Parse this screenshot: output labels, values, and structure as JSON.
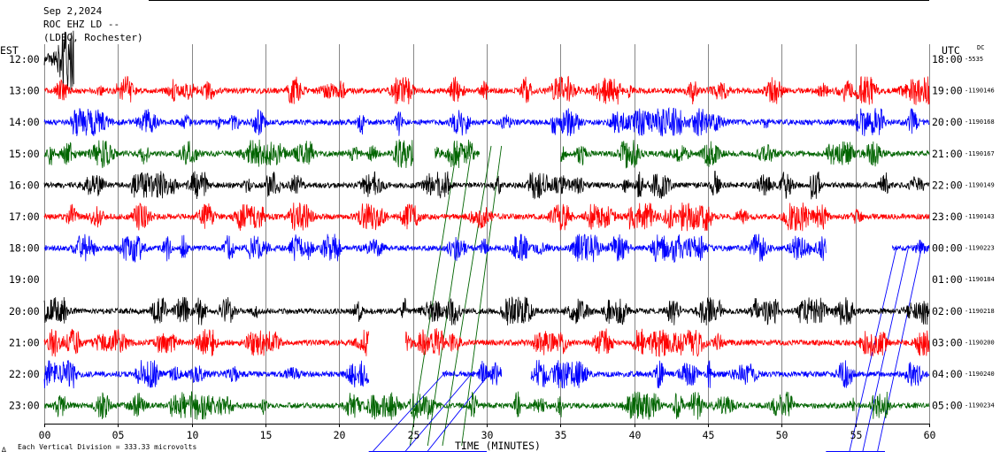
{
  "header": {
    "date": "Sep 2,2024",
    "station": "ROC EHZ LD --",
    "network": "(LDEO, Rochester)"
  },
  "left_axis_title": "EST",
  "right_axis_title": "UTC",
  "dc_label": "DC",
  "x_axis_title": "TIME (MINUTES)",
  "footer": {
    "mark": "∆",
    "text": "Each Vertical Division = 333.33 microvolts"
  },
  "colors": {
    "black": "#000000",
    "red": "#ff0000",
    "blue": "#0000ff",
    "green": "#006400",
    "grid": "#888888"
  },
  "chart_data": {
    "type": "line",
    "title": "",
    "xlabel": "TIME (MINUTES)",
    "ylabel": "EST",
    "xlim": [
      0,
      60
    ],
    "x_ticks": [
      "00",
      "05",
      "10",
      "15",
      "20",
      "25",
      "30",
      "35",
      "40",
      "45",
      "50",
      "55",
      "60"
    ],
    "grid": true,
    "series": [
      {
        "est": "12:00",
        "utc": "18:00",
        "dc": "-5535",
        "color": "black",
        "extent": [
          [
            0,
            2
          ]
        ],
        "amp": 20,
        "seed": 11
      },
      {
        "est": "13:00",
        "utc": "19:00",
        "dc": "-1190146",
        "color": "red",
        "extent": [
          [
            0,
            60
          ]
        ],
        "amp": 9,
        "seed": 12
      },
      {
        "est": "14:00",
        "utc": "20:00",
        "dc": "-1190168",
        "color": "blue",
        "extent": [
          [
            0,
            60
          ]
        ],
        "amp": 9,
        "seed": 13
      },
      {
        "est": "15:00",
        "utc": "21:00",
        "dc": "-1190167",
        "color": "green",
        "extent": [
          [
            0,
            25
          ],
          [
            26.5,
            29.5
          ],
          [
            35,
            60
          ]
        ],
        "amp": 9,
        "seed": 14
      },
      {
        "est": "16:00",
        "utc": "22:00",
        "dc": "-1190149",
        "color": "black",
        "extent": [
          [
            0,
            60
          ]
        ],
        "amp": 9,
        "seed": 15
      },
      {
        "est": "17:00",
        "utc": "23:00",
        "dc": "-1190143",
        "color": "red",
        "extent": [
          [
            0,
            60
          ]
        ],
        "amp": 9,
        "seed": 16
      },
      {
        "est": "18:00",
        "utc": "00:00",
        "dc": "-1190223",
        "color": "blue",
        "extent": [
          [
            0,
            53
          ],
          [
            57.5,
            60
          ]
        ],
        "amp": 9,
        "seed": 17
      },
      {
        "est": "19:00",
        "utc": "01:00",
        "dc": "-1190184",
        "color": "black",
        "extent": [],
        "amp": 0,
        "seed": 18
      },
      {
        "est": "20:00",
        "utc": "02:00",
        "dc": "-1190218",
        "color": "black",
        "extent": [
          [
            0,
            60
          ]
        ],
        "amp": 9,
        "seed": 19
      },
      {
        "est": "21:00",
        "utc": "03:00",
        "dc": "-1190200",
        "color": "red",
        "extent": [
          [
            0,
            22
          ],
          [
            24.5,
            60
          ]
        ],
        "amp": 9,
        "seed": 20
      },
      {
        "est": "22:00",
        "utc": "04:00",
        "dc": "-1190240",
        "color": "blue",
        "extent": [
          [
            0,
            22
          ],
          [
            27,
            31
          ],
          [
            33,
            60
          ]
        ],
        "amp": 9,
        "seed": 21
      },
      {
        "est": "23:00",
        "utc": "05:00",
        "dc": "-1190234",
        "color": "green",
        "extent": [
          [
            0,
            60
          ]
        ],
        "amp": 9,
        "seed": 22
      }
    ]
  }
}
